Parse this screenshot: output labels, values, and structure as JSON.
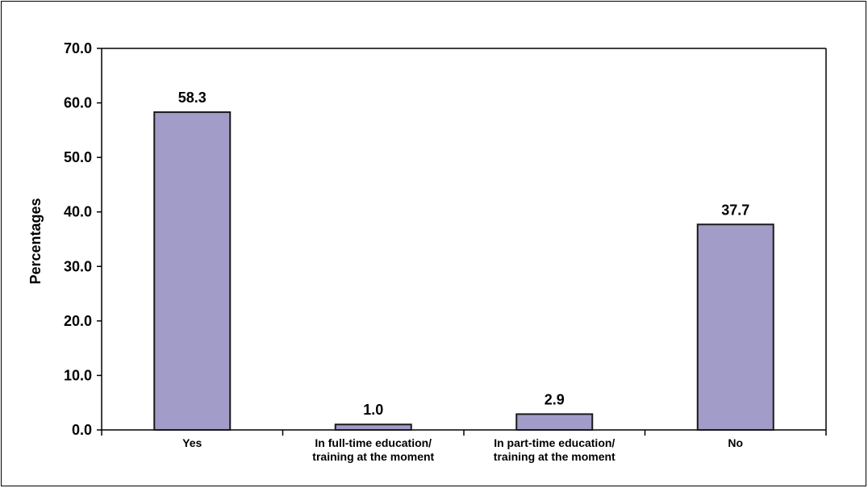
{
  "chart_data": {
    "type": "bar",
    "categories": [
      [
        "Yes"
      ],
      [
        "In full-time education/",
        "training at the moment"
      ],
      [
        "In part-time education/",
        "training at the moment"
      ],
      [
        "No"
      ]
    ],
    "values": [
      58.3,
      1.0,
      2.9,
      37.7
    ],
    "data_labels": [
      "58.3",
      "1.0",
      "2.9",
      "37.7"
    ],
    "ylabel": "Percentages",
    "xlabel": "",
    "ylim": [
      0,
      70
    ],
    "yticks": [
      "0.0",
      "10.0",
      "20.0",
      "30.0",
      "40.0",
      "50.0",
      "60.0",
      "70.0"
    ],
    "grid": false,
    "bar_color": "#a19cc8",
    "bar_edge_color": "#1a1a1a"
  }
}
